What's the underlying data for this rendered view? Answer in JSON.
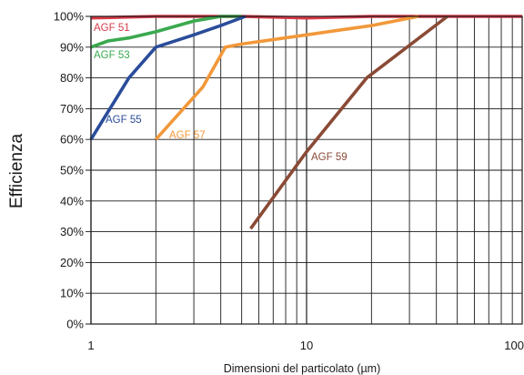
{
  "chart_data": {
    "type": "line",
    "xscale": "log",
    "xlim": [
      1,
      100
    ],
    "ylim": [
      0,
      100
    ],
    "grid": true,
    "xlabel": "Dimensioni del particolato (µm)",
    "ylabel": "Efficienza",
    "xticks": [
      {
        "value": 1,
        "label": "1"
      },
      {
        "value": 10,
        "label": "10"
      },
      {
        "value": 100,
        "label": "100"
      }
    ],
    "yticks": [
      {
        "value": 0,
        "label": "0%"
      },
      {
        "value": 10,
        "label": "10%"
      },
      {
        "value": 20,
        "label": "20%"
      },
      {
        "value": 30,
        "label": "30%"
      },
      {
        "value": 40,
        "label": "40%"
      },
      {
        "value": 50,
        "label": "50%"
      },
      {
        "value": 60,
        "label": "60%"
      },
      {
        "value": 70,
        "label": "70%"
      },
      {
        "value": 80,
        "label": "80%"
      },
      {
        "value": 90,
        "label": "90%"
      },
      {
        "value": 100,
        "label": "100%"
      }
    ],
    "series": [
      {
        "name": "AGF 51",
        "color": "#d83a48",
        "points": [
          [
            1,
            99.5
          ],
          [
            2,
            100
          ],
          [
            5,
            100
          ],
          [
            10,
            99.5
          ],
          [
            20,
            100
          ],
          [
            45,
            100
          ],
          [
            100,
            100
          ]
        ]
      },
      {
        "name": "AGF 53",
        "color": "#3aa94f",
        "points": [
          [
            1,
            90
          ],
          [
            1.2,
            92
          ],
          [
            1.5,
            93
          ],
          [
            2,
            95
          ],
          [
            3,
            98.5
          ],
          [
            4,
            100
          ],
          [
            5,
            100
          ]
        ]
      },
      {
        "name": "AGF 55",
        "color": "#2a4c9a",
        "points": [
          [
            1,
            60
          ],
          [
            1.5,
            80
          ],
          [
            2,
            90
          ],
          [
            3,
            94
          ],
          [
            4,
            97
          ],
          [
            5.2,
            100
          ]
        ]
      },
      {
        "name": "AGF 57",
        "color": "#f2983a",
        "points": [
          [
            2,
            60
          ],
          [
            3.3,
            77
          ],
          [
            4.2,
            90
          ],
          [
            5,
            91
          ],
          [
            10,
            94
          ],
          [
            20,
            97
          ],
          [
            33,
            100
          ]
        ]
      },
      {
        "name": "AGF 59",
        "color": "#8a4a35",
        "points": [
          [
            5.5,
            31
          ],
          [
            10,
            56
          ],
          [
            19,
            80
          ],
          [
            45,
            100
          ]
        ]
      }
    ]
  }
}
